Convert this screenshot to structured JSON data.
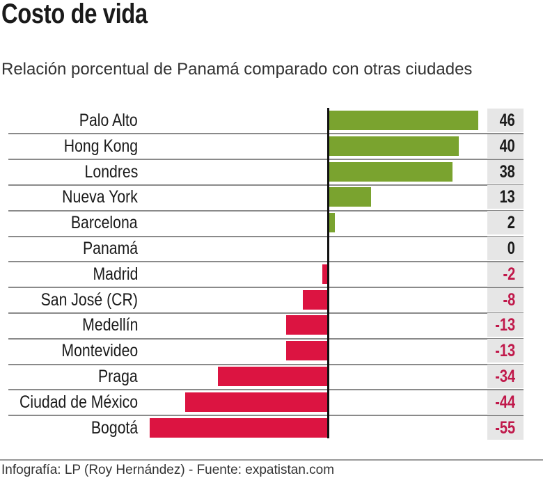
{
  "title": "Costo de vida",
  "subtitle": "Relación porcentual de Panamá comparado con otras ciudades",
  "footer": "Infografía: LP (Roy Hernández) - Fuente: expatistan.com",
  "chart_data": {
    "type": "bar",
    "orientation": "horizontal",
    "categories": [
      "Palo Alto",
      "Hong Kong",
      "Londres",
      "Nueva York",
      "Barcelona",
      "Panamá",
      "Madrid",
      "San José (CR)",
      "Medellín",
      "Montevideo",
      "Praga",
      "Ciudad de México",
      "Bogotá"
    ],
    "values": [
      46,
      40,
      38,
      13,
      2,
      0,
      -2,
      -8,
      -13,
      -13,
      -34,
      -44,
      -55
    ],
    "value_labels": [
      "46",
      "40",
      "38",
      "13",
      "2",
      "0",
      "-2",
      "-8",
      "-13",
      "-13",
      "-34",
      "-44",
      "-55"
    ],
    "positive_color": "#7aa32f",
    "negative_color": "#dc1441",
    "positive_text_color": "#1a1a1a",
    "negative_text_color": "#c0184a",
    "grid": false
  }
}
